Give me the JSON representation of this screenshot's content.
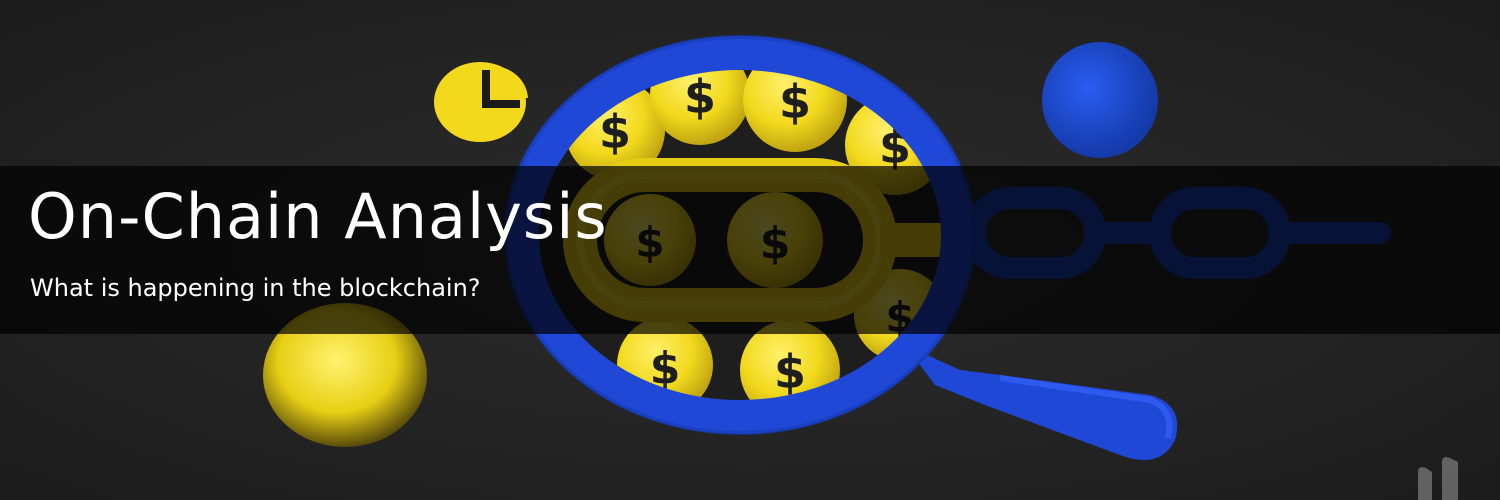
{
  "banner": {
    "title": "On-Chain Analysis",
    "subtitle": "What is happening in the blockchain?"
  },
  "illustration": {
    "coin_symbol": "$",
    "colors": {
      "background": "#262626",
      "coin_yellow": "#f2d91c",
      "coin_dark_yellow": "#b89b10",
      "glass_blue": "#1f48d6",
      "chain_blue": "#1a3cb8",
      "overlay": "#000000"
    },
    "icons": [
      "magnifying-glass-icon",
      "chain-link-icon",
      "dollar-coin-icon",
      "pie-chart-icon"
    ]
  }
}
